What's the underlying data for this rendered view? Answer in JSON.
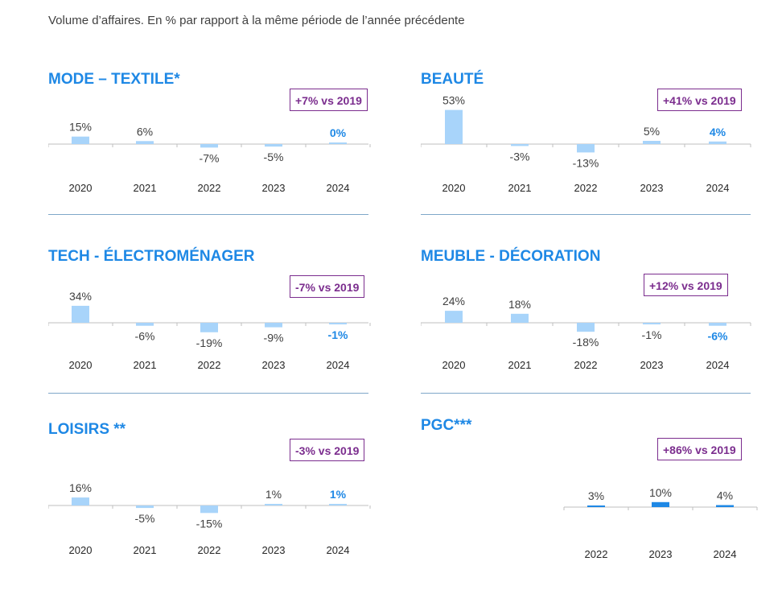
{
  "subtitle": "Volume d’affaires. En % par rapport à la même période de l’année précédente",
  "colors": {
    "bar": "#a8d4fa",
    "bar_dark": "#1e88e5",
    "title": "#1e88e5",
    "badge": "#7b2d8e",
    "axis": "#bfbfbf",
    "label": "#404040"
  },
  "panels": [
    {
      "title": "MODE – TEXTILE*",
      "badge": "+7% vs 2019"
    },
    {
      "title": "BEAUTÉ",
      "badge": "+41% vs 2019"
    },
    {
      "title": "TECH - ÉLECTROMÉNAGER",
      "badge": "-7% vs 2019"
    },
    {
      "title": "MEUBLE - DÉCORATION",
      "badge": "+12% vs 2019"
    },
    {
      "title": "LOISIRS **",
      "badge": "-3% vs 2019"
    },
    {
      "title": "PGC***",
      "badge": "+86% vs 2019"
    }
  ],
  "chart_data": [
    {
      "type": "bar",
      "title": "MODE – TEXTILE*",
      "categories": [
        "2020",
        "2021",
        "2022",
        "2023",
        "2024"
      ],
      "values": [
        15,
        6,
        -7,
        -5,
        0
      ],
      "value_labels": [
        "15%",
        "6%",
        "-7%",
        "-5%",
        "0%"
      ]
    },
    {
      "type": "bar",
      "title": "BEAUTÉ",
      "categories": [
        "2020",
        "2021",
        "2022",
        "2023",
        "2024"
      ],
      "values": [
        53,
        -3,
        -13,
        5,
        4
      ],
      "value_labels": [
        "53%",
        "-3%",
        "-13%",
        "5%",
        "4%"
      ]
    },
    {
      "type": "bar",
      "title": "TECH - ÉLECTROMÉNAGER",
      "categories": [
        "2020",
        "2021",
        "2022",
        "2023",
        "2024"
      ],
      "values": [
        34,
        -6,
        -19,
        -9,
        -1
      ],
      "value_labels": [
        "34%",
        "-6%",
        "-19%",
        "-9%",
        "-1%"
      ]
    },
    {
      "type": "bar",
      "title": "MEUBLE - DÉCORATION",
      "categories": [
        "2020",
        "2021",
        "2022",
        "2023",
        "2024"
      ],
      "values": [
        24,
        18,
        -18,
        -1,
        -6
      ],
      "value_labels": [
        "24%",
        "18%",
        "-18%",
        "-1%",
        "-6%"
      ]
    },
    {
      "type": "bar",
      "title": "LOISIRS **",
      "categories": [
        "2020",
        "2021",
        "2022",
        "2023",
        "2024"
      ],
      "values": [
        16,
        -5,
        -15,
        1,
        1
      ],
      "value_labels": [
        "16%",
        "-5%",
        "-15%",
        "1%",
        "1%"
      ]
    },
    {
      "type": "bar",
      "title": "PGC***",
      "categories": [
        "2022",
        "2023",
        "2024"
      ],
      "values": [
        3,
        10,
        4
      ],
      "value_labels": [
        "3%",
        "10%",
        "4%"
      ]
    }
  ]
}
